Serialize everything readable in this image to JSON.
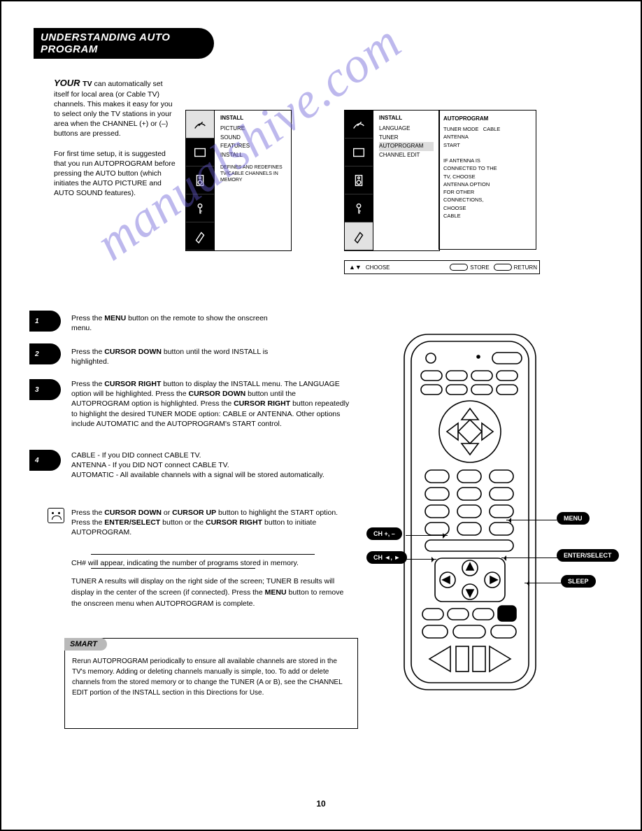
{
  "page_number": "10",
  "title": "UNDERSTANDING AUTO PROGRAM",
  "intro_lead": "YOUR ",
  "intro_bold": "TV",
  "intro_rest": " can automatically set itself for local area (or Cable TV) channels. This makes it easy for you to select only the TV stations in your area when the CHANNEL (+) or (–) buttons are pressed.",
  "intro_note": "For first time setup, it is suggested that you run AUTOPROGRAM before pressing the AUTO button (which initiates the AUTO PICTURE and AUTO SOUND features).",
  "sidetabs": {
    "t1": "1",
    "t2": "2",
    "t3": "3",
    "t4": "4"
  },
  "steps": {
    "s1": "Press the <b>MENU</b> button on the remote to show the onscreen menu.",
    "s2": "Press the <b>CURSOR DOWN</b> button until the word INSTALL is highlighted.",
    "s3": "Press the <b>CURSOR RIGHT</b> button to display the INSTALL menu. The LANGUAGE option will be highlighted. Press the <b>CURSOR DOWN</b> button until the AUTOPROGRAM option is highlighted. Press the <b>CURSOR RIGHT</b> button repeatedly to highlight the desired TUNER MODE option: CABLE or ANTENNA. Other options include AUTOMATIC and the AUTOPROGRAM's START control.",
    "s4a": "CABLE - If you DID connect CABLE TV.",
    "s4b": "ANTENNA - If you DID NOT connect CABLE TV.",
    "s4c": "AUTOMATIC - All available channels with a signal will be stored automatically."
  },
  "auto_paragraph": "Press the <b>CURSOR DOWN</b> or <b>CURSOR UP</b> button to highlight the START option. Press the <b>ENTER/SELECT</b> button or the <b>CURSOR RIGHT</b> button to initiate AUTOPROGRAM.",
  "below_line": "CH# will appear, indicating the number of programs stored in memory.",
  "extras": "TUNER A results will display on the right side of the screen; TUNER B results will display in the center of the screen (if connected). Press the <b>MENU</b> button to remove the onscreen menu when AUTOPROGRAM is complete.",
  "hint_label": "SMART",
  "hint_body": "Rerun AUTOPROGRAM periodically to ensure all available channels are stored in the TV's memory. Adding or deleting channels manually is simple, too. To add or delete channels from the stored memory or to change the TUNER (A or B), see the CHANNEL EDIT portion of the INSTALL section in this Directions for Use.",
  "panelA": {
    "heading": "INSTALL",
    "items": [
      "PICTURE",
      "SOUND",
      "FEATURES",
      "INSTALL"
    ],
    "extra": "DEFINES AND\nREDEFINES TV/CABLE\nCHANNELS IN MEMORY"
  },
  "panelB": {
    "heading": "INSTALL",
    "items": [
      "LANGUAGE",
      "TUNER",
      "AUTOPROGRAM",
      "CHANNEL EDIT"
    ],
    "selected_index": 2
  },
  "panelC": {
    "heading": "AUTOPROGRAM",
    "rows": [
      [
        "TUNER MODE",
        "CABLE"
      ],
      [
        "",
        "ANTENNA"
      ],
      [
        "",
        "START"
      ],
      [
        " ",
        " "
      ],
      [
        "IF ANTENNA IS",
        ""
      ],
      [
        "CONNECTED TO THE",
        ""
      ],
      [
        "TV, CHOOSE",
        ""
      ],
      [
        "ANTENNA OPTION",
        ""
      ],
      [
        "FOR OTHER",
        ""
      ],
      [
        "CONNECTIONS,",
        ""
      ],
      [
        "CHOOSE",
        ""
      ],
      [
        "CABLE",
        ""
      ]
    ]
  },
  "navbar": {
    "choose": "CHOOSE",
    "store": "STORE",
    "return": "RETURN"
  },
  "remote_labels": {
    "menu": "MENU",
    "enter": "ENTER/SELECT",
    "sleep": "SLEEP",
    "cha": "CH +, –",
    "chb": "CH ◄, ►"
  },
  "watermark": "manualshive.com",
  "colors": {
    "black": "#000000",
    "grey": "#b9b9b9",
    "sel": "#e2e2e2",
    "wm": "rgba(104,94,213,.44)"
  }
}
